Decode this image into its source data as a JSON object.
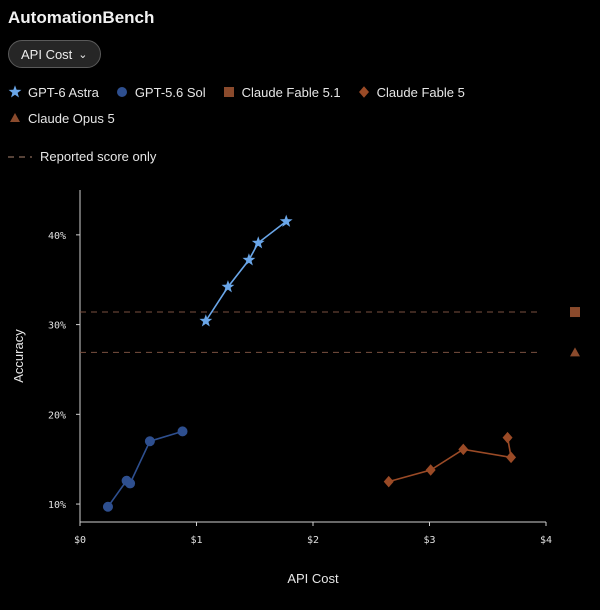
{
  "header": {
    "title": "AutomationBench"
  },
  "controls": {
    "metric_label": "API Cost"
  },
  "legend": {
    "items": [
      {
        "name": "GPT-6 Astra",
        "marker": "star",
        "color": "#6aa6e8"
      },
      {
        "name": "GPT-5.6 Sol",
        "marker": "circle",
        "color": "#2e4f8f"
      },
      {
        "name": "Claude Fable 5.1",
        "marker": "square",
        "color": "#8a4a2c"
      },
      {
        "name": "Claude Fable 5",
        "marker": "diamond",
        "color": "#9a4a26"
      },
      {
        "name": "Claude Opus 5",
        "marker": "triangle",
        "color": "#8a4a2c"
      }
    ],
    "reference_label": "Reported score only"
  },
  "chart_data": {
    "type": "line",
    "title": "AutomationBench",
    "xlabel": "API Cost",
    "ylabel": "Accuracy",
    "xlim": [
      0,
      4
    ],
    "ylim": [
      8,
      45
    ],
    "x_ticks": [
      0,
      1,
      2,
      3,
      4
    ],
    "x_tick_labels": [
      "$0",
      "$1",
      "$2",
      "$3",
      "$4"
    ],
    "y_ticks": [
      10,
      20,
      30,
      40
    ],
    "y_tick_labels": [
      "10%",
      "20%",
      "30%",
      "40%"
    ],
    "grid": false,
    "legend_position": "top",
    "series": [
      {
        "name": "GPT-6 Astra",
        "marker": "star",
        "color": "#6aa6e8",
        "points": [
          [
            1.08,
            30.4
          ],
          [
            1.27,
            34.2
          ],
          [
            1.45,
            37.2
          ],
          [
            1.53,
            39.1
          ],
          [
            1.77,
            41.5
          ]
        ]
      },
      {
        "name": "GPT-5.6 Sol",
        "marker": "circle",
        "color": "#2e4f8f",
        "points": [
          [
            0.24,
            9.7
          ],
          [
            0.4,
            12.6
          ],
          [
            0.43,
            12.3
          ],
          [
            0.6,
            17.0
          ],
          [
            0.88,
            18.1
          ]
        ]
      },
      {
        "name": "Claude Fable 5",
        "marker": "diamond",
        "color": "#9a4a26",
        "points": [
          [
            2.65,
            12.5
          ],
          [
            3.01,
            13.8
          ],
          [
            3.29,
            16.1
          ],
          [
            3.7,
            15.2
          ],
          [
            3.67,
            17.4
          ]
        ]
      }
    ],
    "reported_only": [
      {
        "name": "Claude Fable 5.1",
        "marker": "square",
        "color": "#8a4a2c",
        "y": 31.4
      },
      {
        "name": "Claude Opus 5",
        "marker": "triangle",
        "color": "#8a4a2c",
        "y": 26.9
      }
    ]
  }
}
